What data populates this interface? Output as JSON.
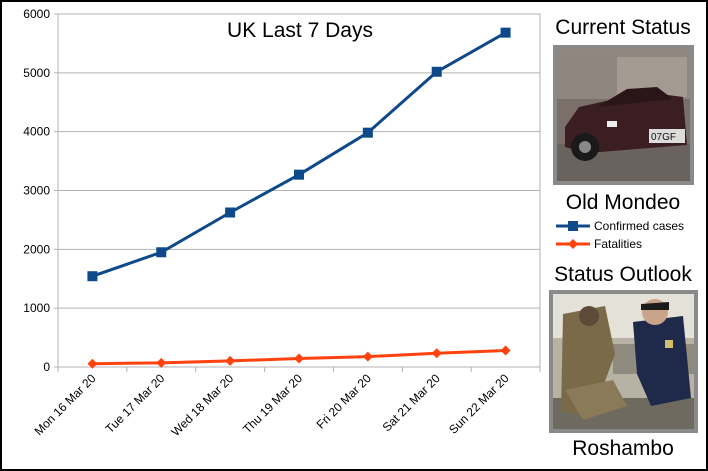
{
  "chart_data": {
    "type": "line",
    "title": "UK Last 7 Days",
    "categories": [
      "Mon 16 Mar 20",
      "Tue 17 Mar 20",
      "Wed 18 Mar 20",
      "Thu 19 Mar 20",
      "Fri 20 Mar 20",
      "Sat 21 Mar 20",
      "Sun 22 Mar 20"
    ],
    "series": [
      {
        "name": "Confirmed cases",
        "color": "#0e4a8a",
        "marker": "square",
        "values": [
          1543,
          1950,
          2626,
          3269,
          3983,
          5018,
          5683
        ]
      },
      {
        "name": "Fatalities",
        "color": "#ff420e",
        "marker": "diamond",
        "values": [
          55,
          71,
          104,
          144,
          177,
          233,
          281
        ]
      }
    ],
    "ylim": [
      0,
      6000
    ],
    "yticks": [
      "0",
      "1000",
      "2000",
      "3000",
      "4000",
      "5000",
      "6000"
    ],
    "grid": true,
    "legend_position": "right"
  },
  "sidebar": {
    "current_status_heading": "Current Status",
    "current_status_caption": "Old Mondeo",
    "car_plate_text": "07GF",
    "status_outlook_heading": "Status Outlook",
    "status_outlook_caption": "Roshambo"
  }
}
